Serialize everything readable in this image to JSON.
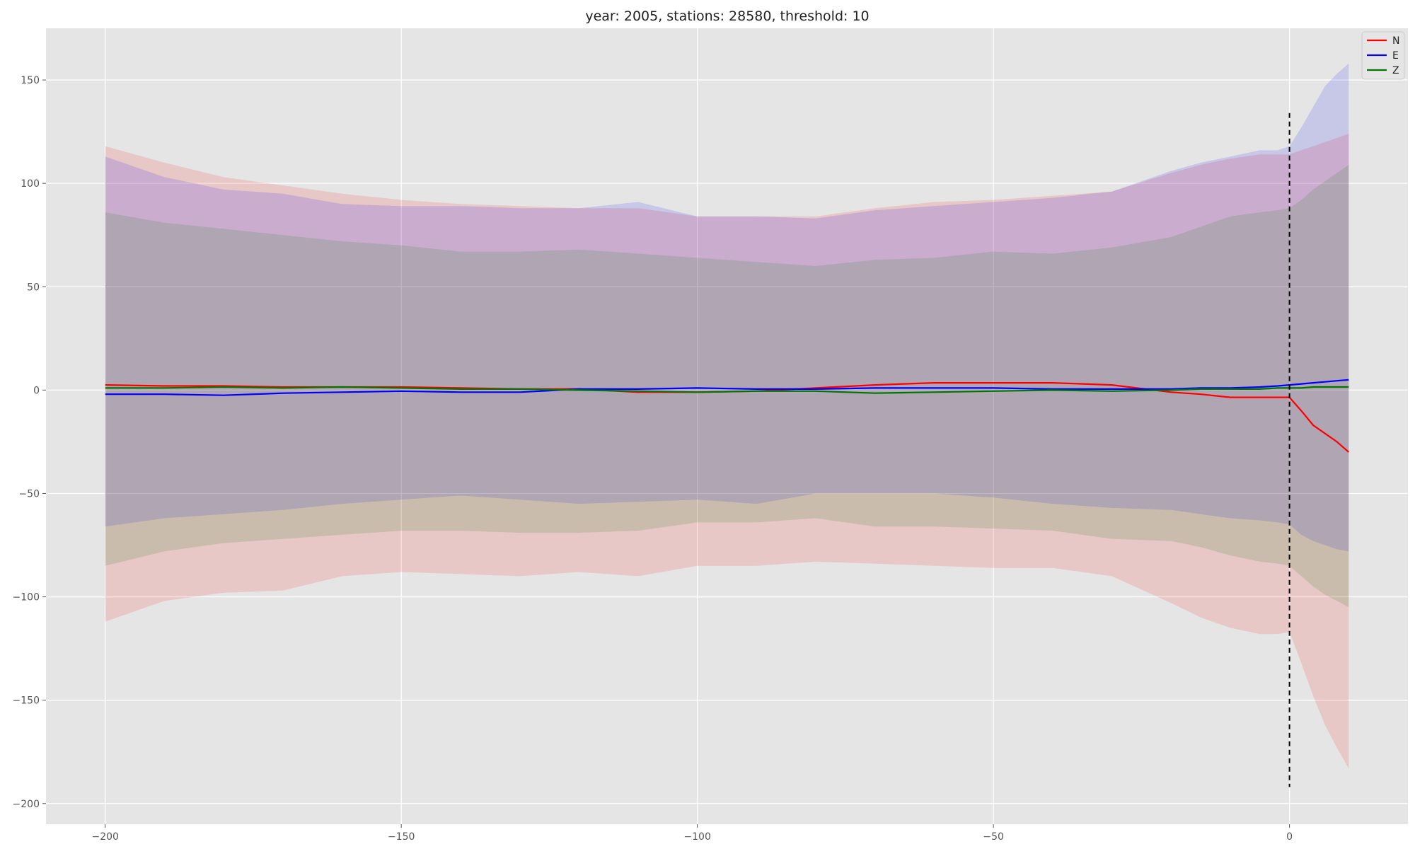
{
  "chart_data": {
    "type": "line",
    "title": "year: 2005, stations: 28580, threshold: 10",
    "xlabel": "",
    "ylabel": "",
    "xlim": [
      -210,
      20
    ],
    "ylim": [
      -210,
      175
    ],
    "xticks": [
      -200,
      -150,
      -100,
      -50,
      0
    ],
    "yticks": [
      -200,
      -150,
      -100,
      -50,
      0,
      50,
      100,
      150
    ],
    "xtick_labels": [
      "−200",
      "−150",
      "−100",
      "−50",
      "0"
    ],
    "ytick_labels": [
      "−200",
      "−150",
      "−100",
      "−50",
      "0",
      "50",
      "100",
      "150"
    ],
    "grid": true,
    "legend_position": "top-right",
    "colors": {
      "background": "#e5e5e5",
      "grid": "#ffffff",
      "N": "#ff0000",
      "E": "#0000ff",
      "Z": "#007700",
      "vline": "#000000"
    },
    "vline": {
      "x": 0,
      "y_range": [
        -192,
        134
      ],
      "style": "dashed"
    },
    "x": [
      -200,
      -190,
      -180,
      -170,
      -160,
      -150,
      -140,
      -130,
      -120,
      -110,
      -100,
      -90,
      -80,
      -70,
      -60,
      -50,
      -40,
      -30,
      -20,
      -15,
      -10,
      -5,
      -2,
      0,
      2,
      4,
      6,
      8,
      10
    ],
    "series": [
      {
        "name": "N",
        "values": [
          2.5,
          2.0,
          2.0,
          1.5,
          1.5,
          1.5,
          1.0,
          0.5,
          0.5,
          -1.0,
          -1.0,
          -0.5,
          1.0,
          2.5,
          3.5,
          3.5,
          3.5,
          2.5,
          -1.0,
          -2.0,
          -3.5,
          -3.5,
          -3.5,
          -3.5,
          -10.0,
          -17.0,
          -21.0,
          -25.0,
          -30.0
        ],
        "band_upper": [
          118,
          110,
          103,
          99,
          95,
          92,
          90,
          89,
          88,
          88,
          84,
          84,
          84,
          88,
          91,
          92,
          94,
          96,
          105,
          109,
          112,
          114,
          114,
          114,
          116,
          118,
          120,
          122,
          124
        ],
        "band_lower": [
          -112,
          -102,
          -98,
          -97,
          -90,
          -88,
          -89,
          -90,
          -88,
          -90,
          -85,
          -85,
          -83,
          -84,
          -85,
          -86,
          -86,
          -90,
          -103,
          -110,
          -115,
          -118,
          -118,
          -117,
          -132,
          -148,
          -162,
          -173,
          -183
        ]
      },
      {
        "name": "E",
        "values": [
          -2.0,
          -2.0,
          -2.5,
          -1.5,
          -1.0,
          -0.5,
          -1.0,
          -1.0,
          0.5,
          0.5,
          1.0,
          0.5,
          0.5,
          1.0,
          1.0,
          1.0,
          0.5,
          0.5,
          0.5,
          1.0,
          1.0,
          1.5,
          2.0,
          2.5,
          3.0,
          3.5,
          4.0,
          4.5,
          5.0
        ],
        "band_upper": [
          113,
          103,
          97,
          95,
          90,
          89,
          89,
          88,
          88,
          91,
          84,
          84,
          83,
          87,
          89,
          91,
          93,
          96,
          106,
          110,
          113,
          116,
          116,
          118,
          127,
          137,
          147,
          153,
          158
        ],
        "band_lower": [
          -66,
          -62,
          -60,
          -58,
          -55,
          -53,
          -51,
          -53,
          -55,
          -54,
          -53,
          -55,
          -50,
          -50,
          -50,
          -52,
          -55,
          -57,
          -58,
          -60,
          -62,
          -63,
          -64,
          -65,
          -70,
          -73,
          -75,
          -77,
          -78
        ]
      },
      {
        "name": "Z",
        "values": [
          1.0,
          1.0,
          1.5,
          1.0,
          1.5,
          1.0,
          0.5,
          0.5,
          0.0,
          -0.5,
          -1.0,
          -0.5,
          -0.5,
          -1.5,
          -1.0,
          -0.5,
          0.0,
          -0.5,
          0.0,
          0.5,
          0.5,
          0.5,
          1.0,
          1.0,
          1.0,
          1.5,
          1.5,
          1.5,
          1.5
        ],
        "band_upper": [
          86,
          81,
          78,
          75,
          72,
          70,
          67,
          67,
          68,
          66,
          64,
          62,
          60,
          63,
          64,
          67,
          66,
          69,
          74,
          79,
          84,
          86,
          87,
          88,
          92,
          97,
          101,
          105,
          109
        ],
        "band_lower": [
          -85,
          -78,
          -74,
          -72,
          -70,
          -68,
          -68,
          -69,
          -69,
          -68,
          -64,
          -64,
          -62,
          -66,
          -66,
          -67,
          -68,
          -72,
          -73,
          -76,
          -80,
          -83,
          -84,
          -85,
          -90,
          -95,
          -99,
          -102,
          -105
        ]
      }
    ]
  }
}
